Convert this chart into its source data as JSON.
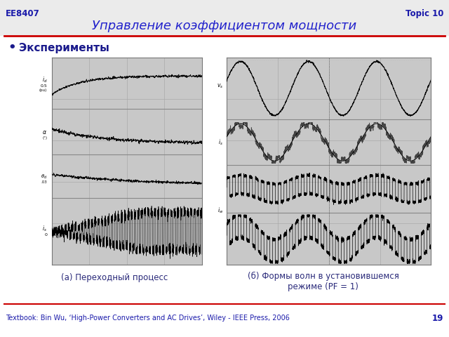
{
  "title": "Управление коэффициентом мощности",
  "header_left": "EE8407",
  "header_right": "Topic 10",
  "bullet_text": "Эксперименты",
  "caption_a": "(а) Переходный процесс",
  "caption_b": "(б) Формы волн в установившемся\nрежиме (PF = 1)",
  "footer_text": "Textbook: Bin Wu, ‘High-Power Converters and AC Drives’, Wiley - IEEE Press, 2006",
  "page_number": "19",
  "header_color": "#1a1aaa",
  "title_color": "#2222cc",
  "bullet_color": "#1a1a8c",
  "caption_color": "#2a2a7a",
  "footer_color": "#1a1aaa",
  "red_line_color": "#cc0000",
  "plot_bg": "#c8c8c8",
  "grid_color": "#aaaaaa",
  "sep_color": "#888888"
}
